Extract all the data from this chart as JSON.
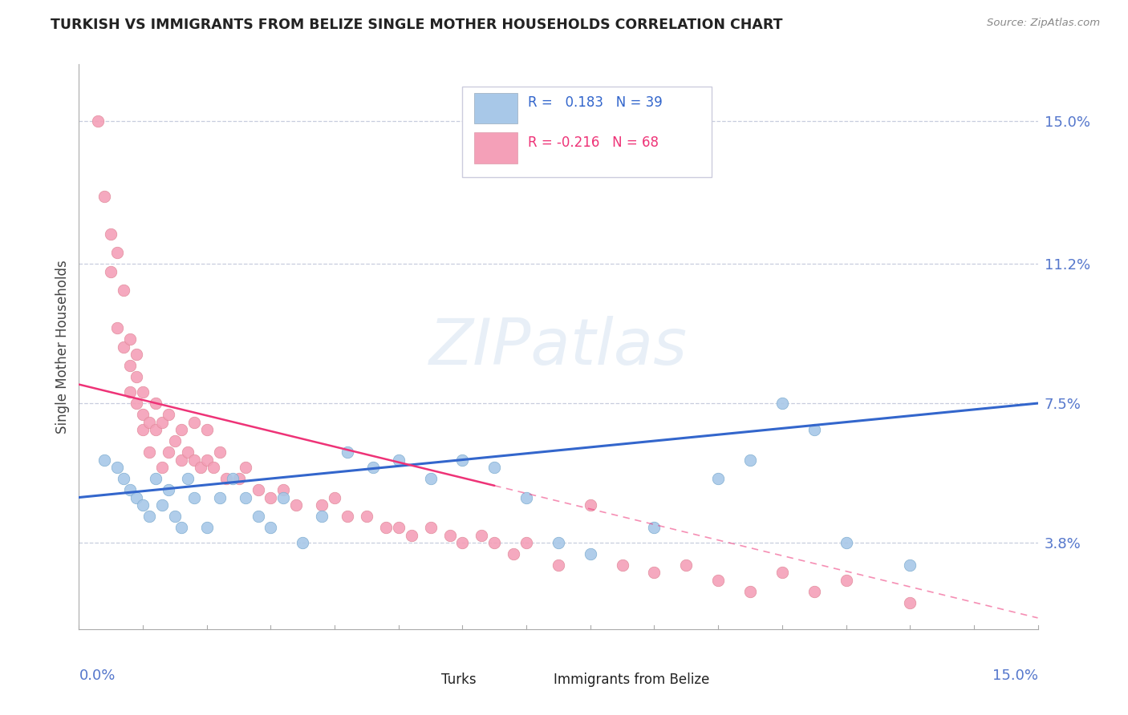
{
  "title": "TURKISH VS IMMIGRANTS FROM BELIZE SINGLE MOTHER HOUSEHOLDS CORRELATION CHART",
  "source": "Source: ZipAtlas.com",
  "ylabel": "Single Mother Households",
  "ytick_labels": [
    "3.8%",
    "7.5%",
    "11.2%",
    "15.0%"
  ],
  "ytick_values": [
    0.038,
    0.075,
    0.112,
    0.15
  ],
  "xmin": 0.0,
  "xmax": 0.15,
  "ymin": 0.015,
  "ymax": 0.165,
  "r_turks": 0.183,
  "n_turks": 39,
  "r_belize": -0.216,
  "n_belize": 68,
  "color_turks": "#a8c8e8",
  "color_belize": "#f4a0b8",
  "color_turks_line": "#3366cc",
  "color_belize_line": "#ee3377",
  "turks_x": [
    0.004,
    0.006,
    0.007,
    0.008,
    0.009,
    0.01,
    0.011,
    0.012,
    0.013,
    0.014,
    0.015,
    0.016,
    0.017,
    0.018,
    0.02,
    0.022,
    0.024,
    0.026,
    0.028,
    0.03,
    0.032,
    0.035,
    0.038,
    0.042,
    0.046,
    0.05,
    0.055,
    0.06,
    0.065,
    0.07,
    0.075,
    0.08,
    0.09,
    0.1,
    0.105,
    0.11,
    0.115,
    0.12,
    0.13
  ],
  "turks_y": [
    0.06,
    0.058,
    0.055,
    0.052,
    0.05,
    0.048,
    0.045,
    0.055,
    0.048,
    0.052,
    0.045,
    0.042,
    0.055,
    0.05,
    0.042,
    0.05,
    0.055,
    0.05,
    0.045,
    0.042,
    0.05,
    0.038,
    0.045,
    0.062,
    0.058,
    0.06,
    0.055,
    0.06,
    0.058,
    0.05,
    0.038,
    0.035,
    0.042,
    0.055,
    0.06,
    0.075,
    0.068,
    0.038,
    0.032
  ],
  "belize_x": [
    0.003,
    0.004,
    0.005,
    0.005,
    0.006,
    0.006,
    0.007,
    0.007,
    0.008,
    0.008,
    0.008,
    0.009,
    0.009,
    0.009,
    0.01,
    0.01,
    0.01,
    0.011,
    0.011,
    0.012,
    0.012,
    0.013,
    0.013,
    0.014,
    0.014,
    0.015,
    0.016,
    0.016,
    0.017,
    0.018,
    0.018,
    0.019,
    0.02,
    0.02,
    0.021,
    0.022,
    0.023,
    0.025,
    0.026,
    0.028,
    0.03,
    0.032,
    0.034,
    0.038,
    0.04,
    0.042,
    0.045,
    0.048,
    0.05,
    0.052,
    0.055,
    0.058,
    0.06,
    0.063,
    0.065,
    0.068,
    0.07,
    0.075,
    0.08,
    0.085,
    0.09,
    0.095,
    0.1,
    0.105,
    0.11,
    0.115,
    0.12,
    0.13
  ],
  "belize_y": [
    0.15,
    0.13,
    0.12,
    0.11,
    0.115,
    0.095,
    0.105,
    0.09,
    0.092,
    0.085,
    0.078,
    0.082,
    0.075,
    0.088,
    0.072,
    0.068,
    0.078,
    0.07,
    0.062,
    0.075,
    0.068,
    0.07,
    0.058,
    0.072,
    0.062,
    0.065,
    0.068,
    0.06,
    0.062,
    0.07,
    0.06,
    0.058,
    0.068,
    0.06,
    0.058,
    0.062,
    0.055,
    0.055,
    0.058,
    0.052,
    0.05,
    0.052,
    0.048,
    0.048,
    0.05,
    0.045,
    0.045,
    0.042,
    0.042,
    0.04,
    0.042,
    0.04,
    0.038,
    0.04,
    0.038,
    0.035,
    0.038,
    0.032,
    0.048,
    0.032,
    0.03,
    0.032,
    0.028,
    0.025,
    0.03,
    0.025,
    0.028,
    0.022
  ],
  "turks_line_y0": 0.05,
  "turks_line_y1": 0.075,
  "belize_line_y0": 0.08,
  "belize_line_y1": 0.018
}
